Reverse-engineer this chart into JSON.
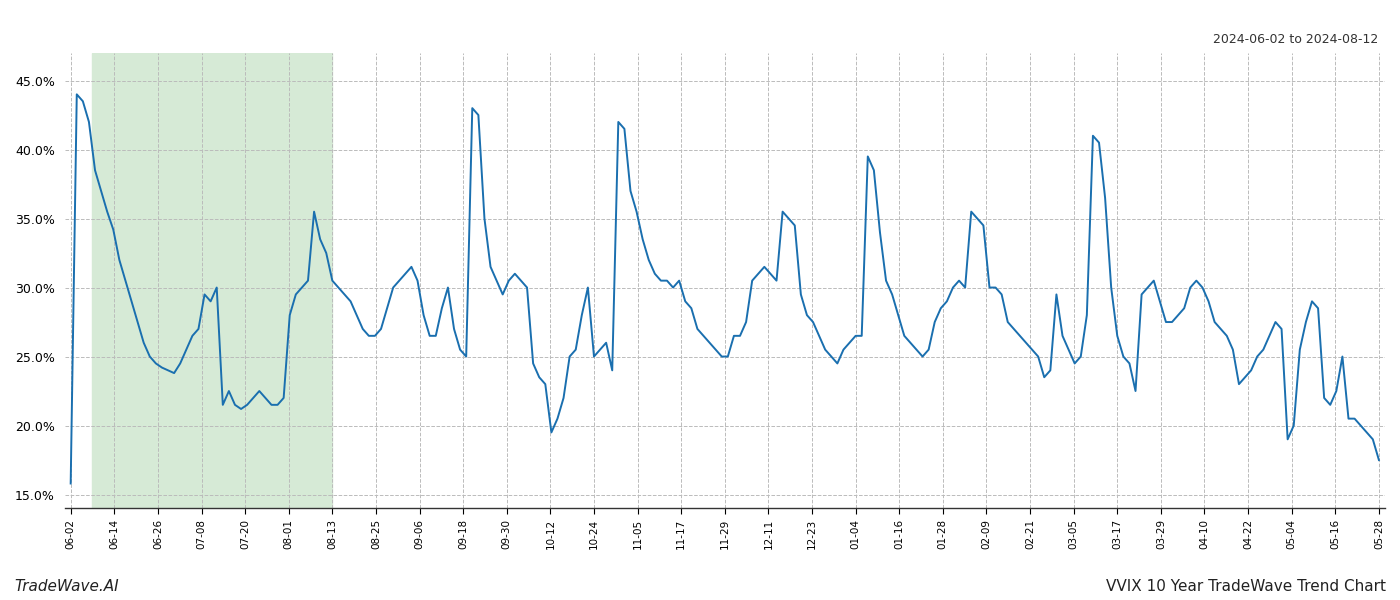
{
  "date_range_label": "2024-06-02 to 2024-08-12",
  "footer_left": "TradeWave.AI",
  "footer_right": "VVIX 10 Year TradeWave Trend Chart",
  "ylim": [
    14.0,
    47.0
  ],
  "yticks": [
    15.0,
    20.0,
    25.0,
    30.0,
    35.0,
    40.0,
    45.0
  ],
  "ytick_labels": [
    "15.0%",
    "20.0%",
    "25.0%",
    "30.0%",
    "35.0%",
    "40.0%",
    "45.0%"
  ],
  "line_color": "#1a6faf",
  "line_width": 1.4,
  "background_color": "#ffffff",
  "grid_color": "#bbbbbb",
  "shade_color": "#d6ead6",
  "x_labels": [
    "06-02",
    "06-14",
    "06-26",
    "07-08",
    "07-20",
    "08-01",
    "08-13",
    "08-25",
    "09-06",
    "09-18",
    "09-30",
    "10-12",
    "10-24",
    "11-05",
    "11-17",
    "11-29",
    "12-11",
    "12-23",
    "01-04",
    "01-16",
    "01-28",
    "02-09",
    "02-21",
    "03-05",
    "03-17",
    "03-29",
    "04-10",
    "04-22",
    "05-04",
    "05-16",
    "05-28"
  ],
  "shade_start_label": "06-08",
  "shade_end_label": "08-13",
  "y_values": [
    15.8,
    44.0,
    43.5,
    42.0,
    38.5,
    37.0,
    35.5,
    34.2,
    32.0,
    30.5,
    29.0,
    27.5,
    26.0,
    25.0,
    24.5,
    24.2,
    24.0,
    23.8,
    24.5,
    25.5,
    26.5,
    27.0,
    29.5,
    29.0,
    30.0,
    21.5,
    22.5,
    21.5,
    21.2,
    21.5,
    22.0,
    22.5,
    22.0,
    21.5,
    21.5,
    22.0,
    28.0,
    29.5,
    30.0,
    30.5,
    35.5,
    33.5,
    32.5,
    30.5,
    30.0,
    29.5,
    29.0,
    28.0,
    27.0,
    26.5,
    26.5,
    27.0,
    28.5,
    30.0,
    30.5,
    31.0,
    31.5,
    30.5,
    28.0,
    26.5,
    26.5,
    28.5,
    30.0,
    27.0,
    25.5,
    25.0,
    43.0,
    42.5,
    35.0,
    31.5,
    30.5,
    29.5,
    30.5,
    31.0,
    30.5,
    30.0,
    24.5,
    23.5,
    23.0,
    19.5,
    20.5,
    22.0,
    25.0,
    25.5,
    28.0,
    30.0,
    25.0,
    25.5,
    26.0,
    24.0,
    42.0,
    41.5,
    37.0,
    35.5,
    33.5,
    32.0,
    31.0,
    30.5,
    30.5,
    30.0,
    30.5,
    29.0,
    28.5,
    27.0,
    26.5,
    26.0,
    25.5,
    25.0,
    25.0,
    26.5,
    26.5,
    27.5,
    30.5,
    31.0,
    31.5,
    31.0,
    30.5,
    35.5,
    35.0,
    34.5,
    29.5,
    28.0,
    27.5,
    26.5,
    25.5,
    25.0,
    24.5,
    25.5,
    26.0,
    26.5,
    26.5,
    39.5,
    38.5,
    34.0,
    30.5,
    29.5,
    28.0,
    26.5,
    26.0,
    25.5,
    25.0,
    25.5,
    27.5,
    28.5,
    29.0,
    30.0,
    30.5,
    30.0,
    35.5,
    35.0,
    34.5,
    30.0,
    30.0,
    29.5,
    27.5,
    27.0,
    26.5,
    26.0,
    25.5,
    25.0,
    23.5,
    24.0,
    29.5,
    26.5,
    25.5,
    24.5,
    25.0,
    28.0,
    41.0,
    40.5,
    36.5,
    30.0,
    26.5,
    25.0,
    24.5,
    22.5,
    29.5,
    30.0,
    30.5,
    29.0,
    27.5,
    27.5,
    28.0,
    28.5,
    30.0,
    30.5,
    30.0,
    29.0,
    27.5,
    27.0,
    26.5,
    25.5,
    23.0,
    23.5,
    24.0,
    25.0,
    25.5,
    26.5,
    27.5,
    27.0,
    19.0,
    20.0,
    25.5,
    27.5,
    29.0,
    28.5,
    22.0,
    21.5,
    22.5,
    25.0,
    20.5,
    20.5,
    20.0,
    19.5,
    19.0,
    17.5
  ]
}
